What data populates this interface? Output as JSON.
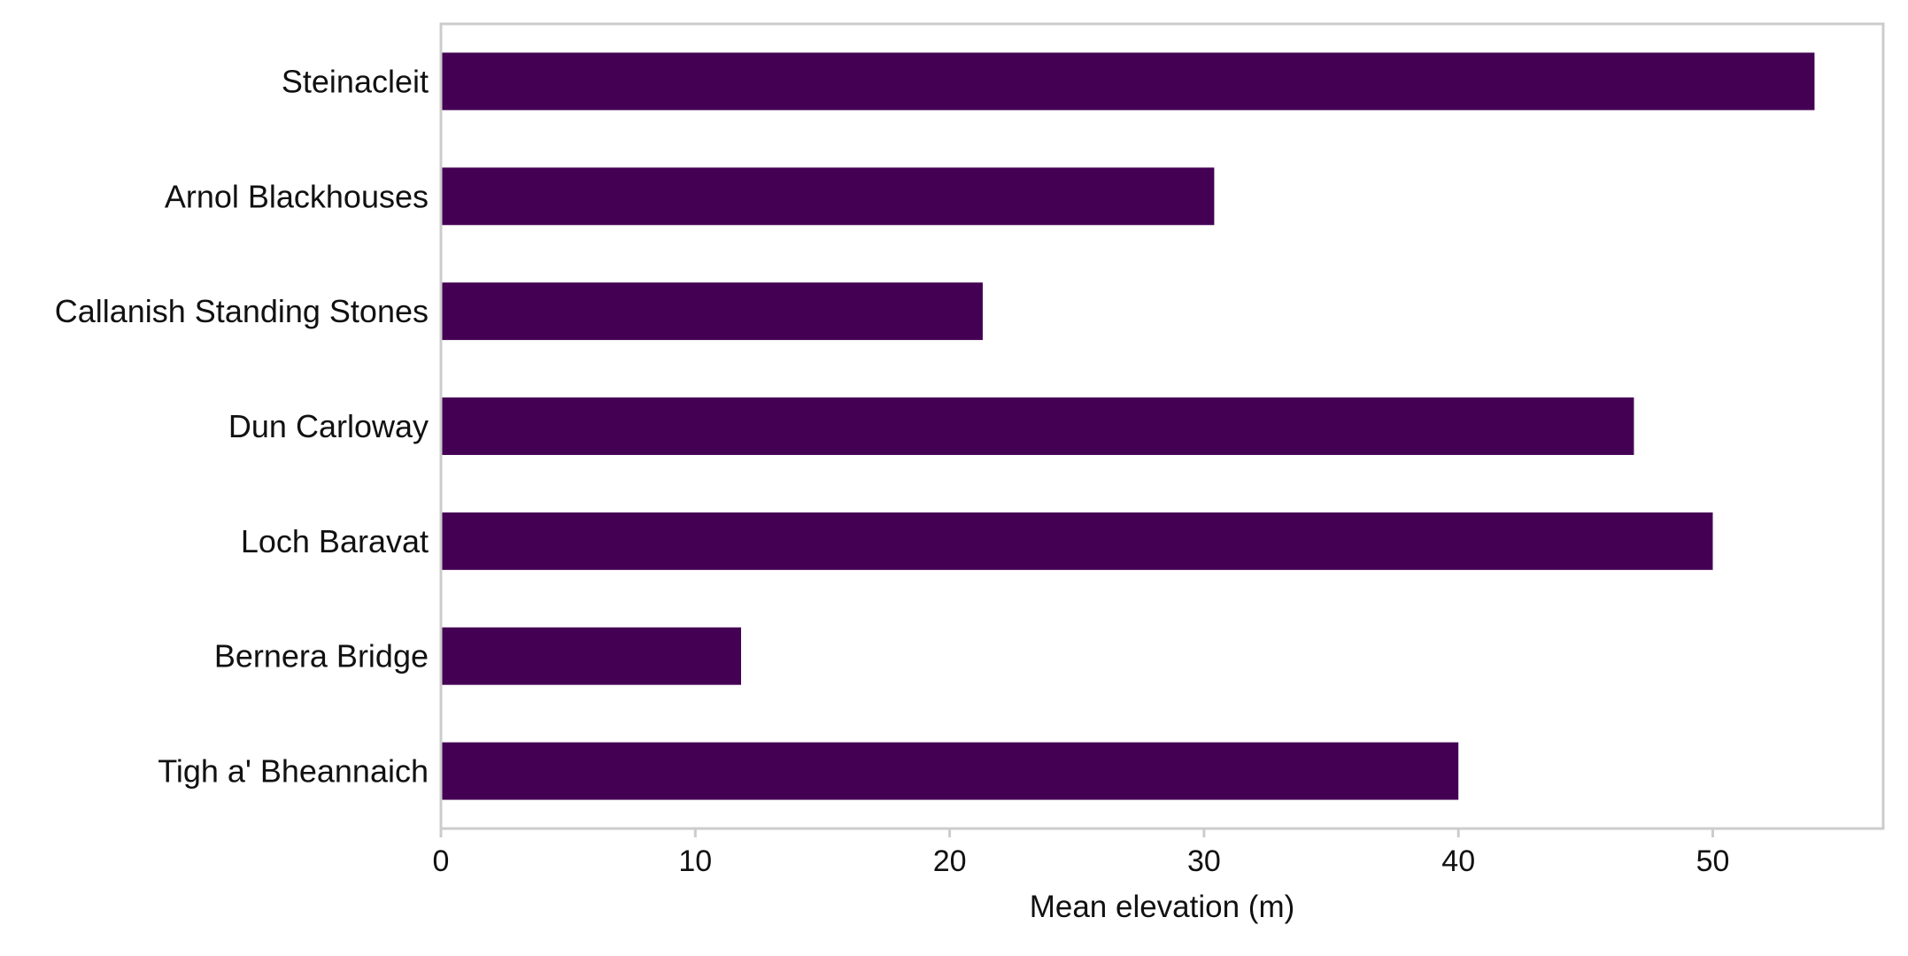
{
  "chart_data": {
    "type": "bar",
    "orientation": "horizontal",
    "title": "",
    "xlabel": "Mean elevation (m)",
    "ylabel": "",
    "categories": [
      "Steinacleit",
      "Arnol Blackhouses",
      "Callanish Standing Stones",
      "Dun Carloway",
      "Loch Baravat",
      "Bernera Bridge",
      "Tigh a' Bheannaich"
    ],
    "values": [
      54.0,
      30.4,
      21.3,
      46.9,
      50.0,
      11.8,
      40.0
    ],
    "xlim": [
      0,
      56.7
    ],
    "xticks": [
      0,
      10,
      20,
      30,
      40,
      50
    ],
    "xtick_labels": [
      "0",
      "10",
      "20",
      "30",
      "40",
      "50"
    ],
    "grid": false,
    "legend": "none",
    "bar_color": "#440154",
    "frame_color": "#cccccc"
  }
}
